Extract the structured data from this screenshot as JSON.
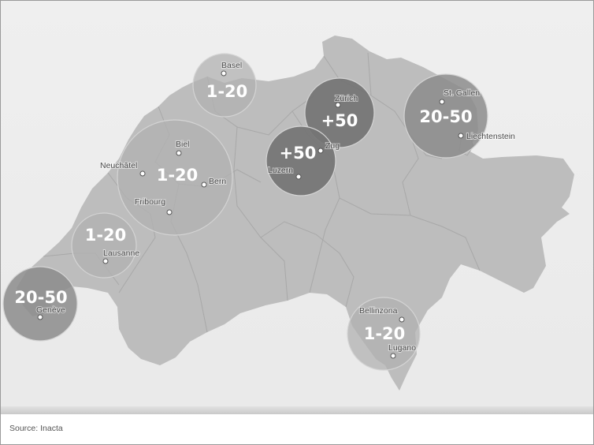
{
  "map": {
    "source": "Source: Inacta",
    "colors": {
      "country": "#bdbdbd",
      "border": "#a8a8a8",
      "circle_light": "#b1b1b1",
      "circle_dark": "#747474",
      "circle_mid": "#8c8c8c"
    },
    "clusters": [
      {
        "name": "basel",
        "label": "1-20",
        "tone": "light"
      },
      {
        "name": "zurich",
        "label": "+50",
        "tone": "dark"
      },
      {
        "name": "zug-luzern",
        "label": "+50",
        "tone": "dark"
      },
      {
        "name": "st-gallen",
        "label": "20-50",
        "tone": "mid"
      },
      {
        "name": "bern-region",
        "label": "1-20",
        "tone": "light"
      },
      {
        "name": "lausanne",
        "label": "1-20",
        "tone": "light"
      },
      {
        "name": "geneve",
        "label": "20-50",
        "tone": "mid"
      },
      {
        "name": "ticino",
        "label": "1-20",
        "tone": "light"
      }
    ],
    "cities": [
      {
        "name": "Basel"
      },
      {
        "name": "Zürich"
      },
      {
        "name": "Zug"
      },
      {
        "name": "Luzern"
      },
      {
        "name": "St. Gallen"
      },
      {
        "name": "Liechtenstein"
      },
      {
        "name": "Biel"
      },
      {
        "name": "Neuchâtel"
      },
      {
        "name": "Bern"
      },
      {
        "name": "Fribourg"
      },
      {
        "name": "Lausanne"
      },
      {
        "name": "Genève"
      },
      {
        "name": "Bellinzona"
      },
      {
        "name": "Lugano"
      }
    ]
  }
}
